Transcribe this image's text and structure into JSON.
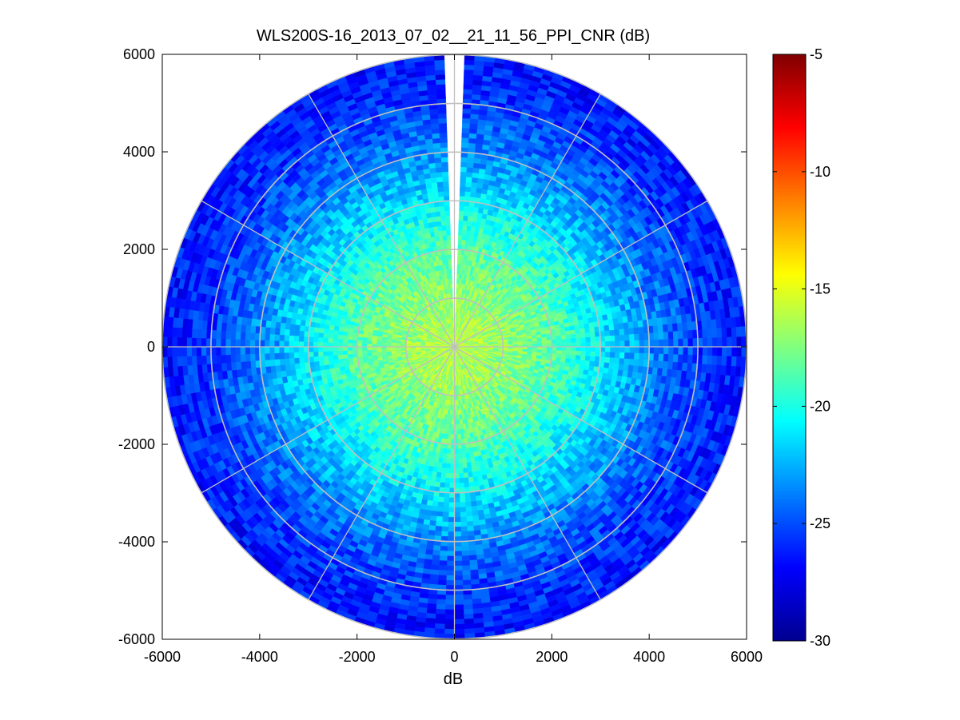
{
  "chart_data": {
    "type": "heatmap",
    "title": "WLS200S-16_2013_07_02__21_11_56_PPI_CNR (dB)",
    "xlabel": "dB",
    "ylabel": "",
    "xlim": [
      -6000,
      6000
    ],
    "ylim": [
      -6000,
      6000
    ],
    "x_ticks": [
      "-6000",
      "-4000",
      "-2000",
      "0",
      "2000",
      "4000",
      "6000"
    ],
    "y_ticks": [
      "6000",
      "4000",
      "2000",
      "0",
      "-2000",
      "-4000",
      "-6000"
    ],
    "projection": "polar",
    "max_range": 6000,
    "range_rings": [
      1000,
      2000,
      3000,
      4000,
      5000,
      6000
    ],
    "spoke_angles_deg": [
      0,
      30,
      60,
      90,
      120,
      150,
      180,
      210,
      240,
      270,
      300,
      330
    ],
    "colorbar": {
      "colormap": "jet",
      "clim": [
        -30,
        -5
      ],
      "tick_values": [
        -5,
        -10,
        -15,
        -20,
        -25,
        -30
      ],
      "tick_labels": [
        "-5",
        "-10",
        "-15",
        "-20",
        "-25",
        "-30"
      ]
    },
    "cnr_profile": {
      "range_m": [
        0,
        1000,
        2000,
        3000,
        4000,
        5000,
        6000
      ],
      "typical_cnr_db": [
        -16,
        -17,
        -18.5,
        -21,
        -23.5,
        -25.5,
        -26.5
      ]
    },
    "blocked_sector_deg": [
      -3,
      3
    ],
    "grid": true,
    "colors": {
      "grid": "#c0c0c0",
      "background": "#ffffff"
    }
  }
}
